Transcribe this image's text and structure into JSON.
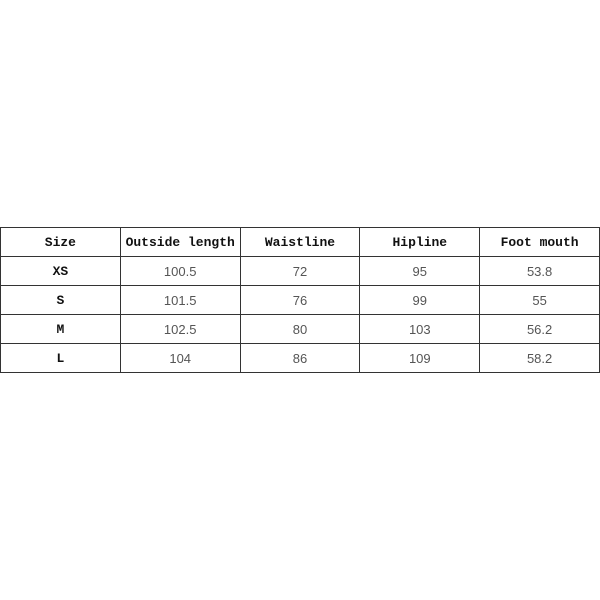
{
  "table": {
    "headers": [
      "Size",
      "Outside length",
      "Waistline",
      "Hipline",
      "Foot mouth"
    ],
    "rows": [
      [
        "XS",
        "100.5",
        "72",
        "95",
        "53.8"
      ],
      [
        "S",
        "101.5",
        "76",
        "99",
        "55"
      ],
      [
        "M",
        "102.5",
        "80",
        "103",
        "56.2"
      ],
      [
        "L",
        "104",
        "86",
        "109",
        "58.2"
      ]
    ]
  }
}
